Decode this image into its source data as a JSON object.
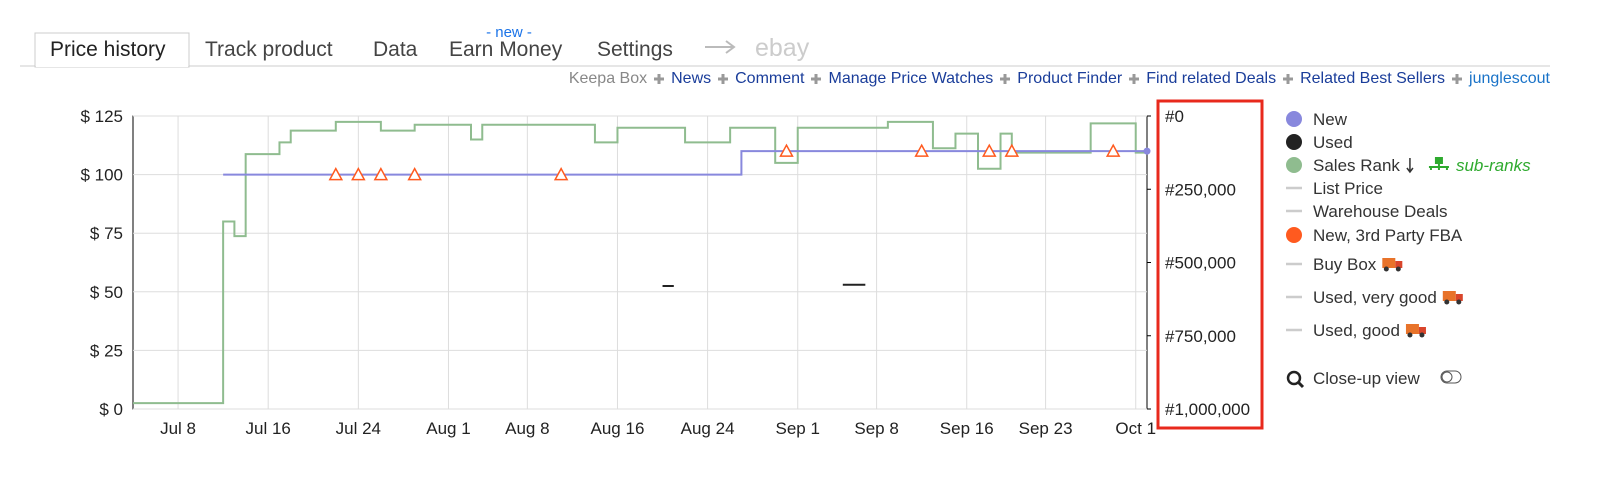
{
  "tabs": {
    "items": [
      "Price history",
      "Track product",
      "Data",
      "Earn Money",
      "Settings",
      "ebay"
    ],
    "badge": "- new -"
  },
  "links": [
    "Keepa Box",
    "News",
    "Comment",
    "Manage Price Watches",
    "Product Finder",
    "Find related Deals",
    "Related Best Sellers",
    "junglescout"
  ],
  "close_up_view": "Close-up view",
  "chart_data": {
    "type": "line",
    "xlim": [
      "Jul 4",
      "Oct 2"
    ],
    "xticks": [
      "Jul 8",
      "Jul 16",
      "Jul 24",
      "Aug 1",
      "Aug 8",
      "Aug 16",
      "Aug 24",
      "Sep 1",
      "Sep 8",
      "Sep 16",
      "Sep 23",
      "Oct 1"
    ],
    "ylim": [
      0,
      125
    ],
    "yticks": [
      {
        "value": 0,
        "label": "$ 0"
      },
      {
        "value": 25,
        "label": "$ 25"
      },
      {
        "value": 50,
        "label": "$ 50"
      },
      {
        "value": 75,
        "label": "$ 75"
      },
      {
        "value": 100,
        "label": "$ 100"
      },
      {
        "value": 125,
        "label": "$ 125"
      }
    ],
    "y2lim": [
      1000000,
      0
    ],
    "y2ticks": [
      {
        "value": 0,
        "label": "#0"
      },
      {
        "value": 250000,
        "label": "#250,000"
      },
      {
        "value": 500000,
        "label": "#500,000"
      },
      {
        "value": 750000,
        "label": "#750,000"
      },
      {
        "value": 1000000,
        "label": "#1,000,000"
      }
    ],
    "grid": true,
    "series": [
      {
        "name": "New",
        "color": "#8888dd",
        "marker": "circle",
        "style": "line",
        "end_dot": true,
        "x": [
          "Jul 12",
          "Aug 27",
          "Aug 27",
          "Oct 2"
        ],
        "values": [
          100,
          100,
          110,
          110
        ]
      },
      {
        "name": "Used",
        "color": "#222222",
        "marker": "circle",
        "style": "line",
        "x": [
          "Aug 20",
          "Aug 21",
          "Aug 22",
          "Sep 5",
          "Sep 7"
        ],
        "values": [
          52.5,
          52.5,
          null,
          53,
          53
        ]
      },
      {
        "name": "Sales Rank",
        "color": "#8fbc8f",
        "marker": "circle",
        "style": "line",
        "axis": "y2",
        "sub_label": "sub-ranks",
        "x": [
          "Jul 4",
          "Jul 12",
          "Jul 12",
          "Jul 13",
          "Jul 13",
          "Jul 14",
          "Jul 14",
          "Jul 17",
          "Jul 17",
          "Jul 18",
          "Jul 18",
          "Jul 22",
          "Jul 22",
          "Jul 26",
          "Jul 26",
          "Jul 29",
          "Jul 29",
          "Aug 3",
          "Aug 3",
          "Aug 4",
          "Aug 4",
          "Aug 14",
          "Aug 14",
          "Aug 16",
          "Aug 16",
          "Aug 22",
          "Aug 22",
          "Aug 26",
          "Aug 26",
          "Aug 30",
          "Aug 30",
          "Sep 1",
          "Sep 1",
          "Sep 9",
          "Sep 9",
          "Sep 13",
          "Sep 13",
          "Sep 15",
          "Sep 15",
          "Sep 17",
          "Sep 17",
          "Sep 19",
          "Sep 19",
          "Sep 20",
          "Sep 20",
          "Sep 27",
          "Sep 27",
          "Oct 1",
          "Oct 1",
          "Oct 2"
        ],
        "values": [
          980000,
          980000,
          360000,
          360000,
          410000,
          410000,
          130000,
          130000,
          90000,
          90000,
          50000,
          50000,
          20000,
          20000,
          50000,
          50000,
          30000,
          30000,
          80000,
          80000,
          30000,
          30000,
          90000,
          90000,
          40000,
          40000,
          90000,
          90000,
          40000,
          40000,
          160000,
          160000,
          40000,
          40000,
          20000,
          20000,
          110000,
          110000,
          60000,
          60000,
          180000,
          180000,
          60000,
          60000,
          125000,
          125000,
          25000,
          25000,
          125000,
          125000
        ]
      },
      {
        "name": "List Price",
        "color": "#cccccc",
        "marker": "dash",
        "style": "line",
        "x": [],
        "values": []
      },
      {
        "name": "Warehouse Deals",
        "color": "#cccccc",
        "marker": "dash",
        "style": "line",
        "x": [],
        "values": []
      },
      {
        "name": "New, 3rd Party FBA",
        "color": "#ff5a1f",
        "marker": "circle",
        "style": "points",
        "x": [
          "Jul 22",
          "Jul 24",
          "Jul 26",
          "Jul 29",
          "Aug 11",
          "Aug 31",
          "Sep 12",
          "Sep 18",
          "Sep 20",
          "Sep 29"
        ],
        "values": [
          100,
          100,
          100,
          100,
          100,
          110,
          110,
          110,
          110,
          110
        ]
      },
      {
        "name": "Buy Box",
        "color": "#cccccc",
        "marker": "dash",
        "style": "line",
        "truck": true,
        "x": [],
        "values": []
      },
      {
        "name": "Used, very good",
        "color": "#cccccc",
        "marker": "dash",
        "style": "line",
        "truck": true,
        "x": [],
        "values": []
      },
      {
        "name": "Used, good",
        "color": "#cccccc",
        "marker": "dash",
        "style": "line",
        "truck": true,
        "x": [],
        "values": []
      }
    ]
  }
}
